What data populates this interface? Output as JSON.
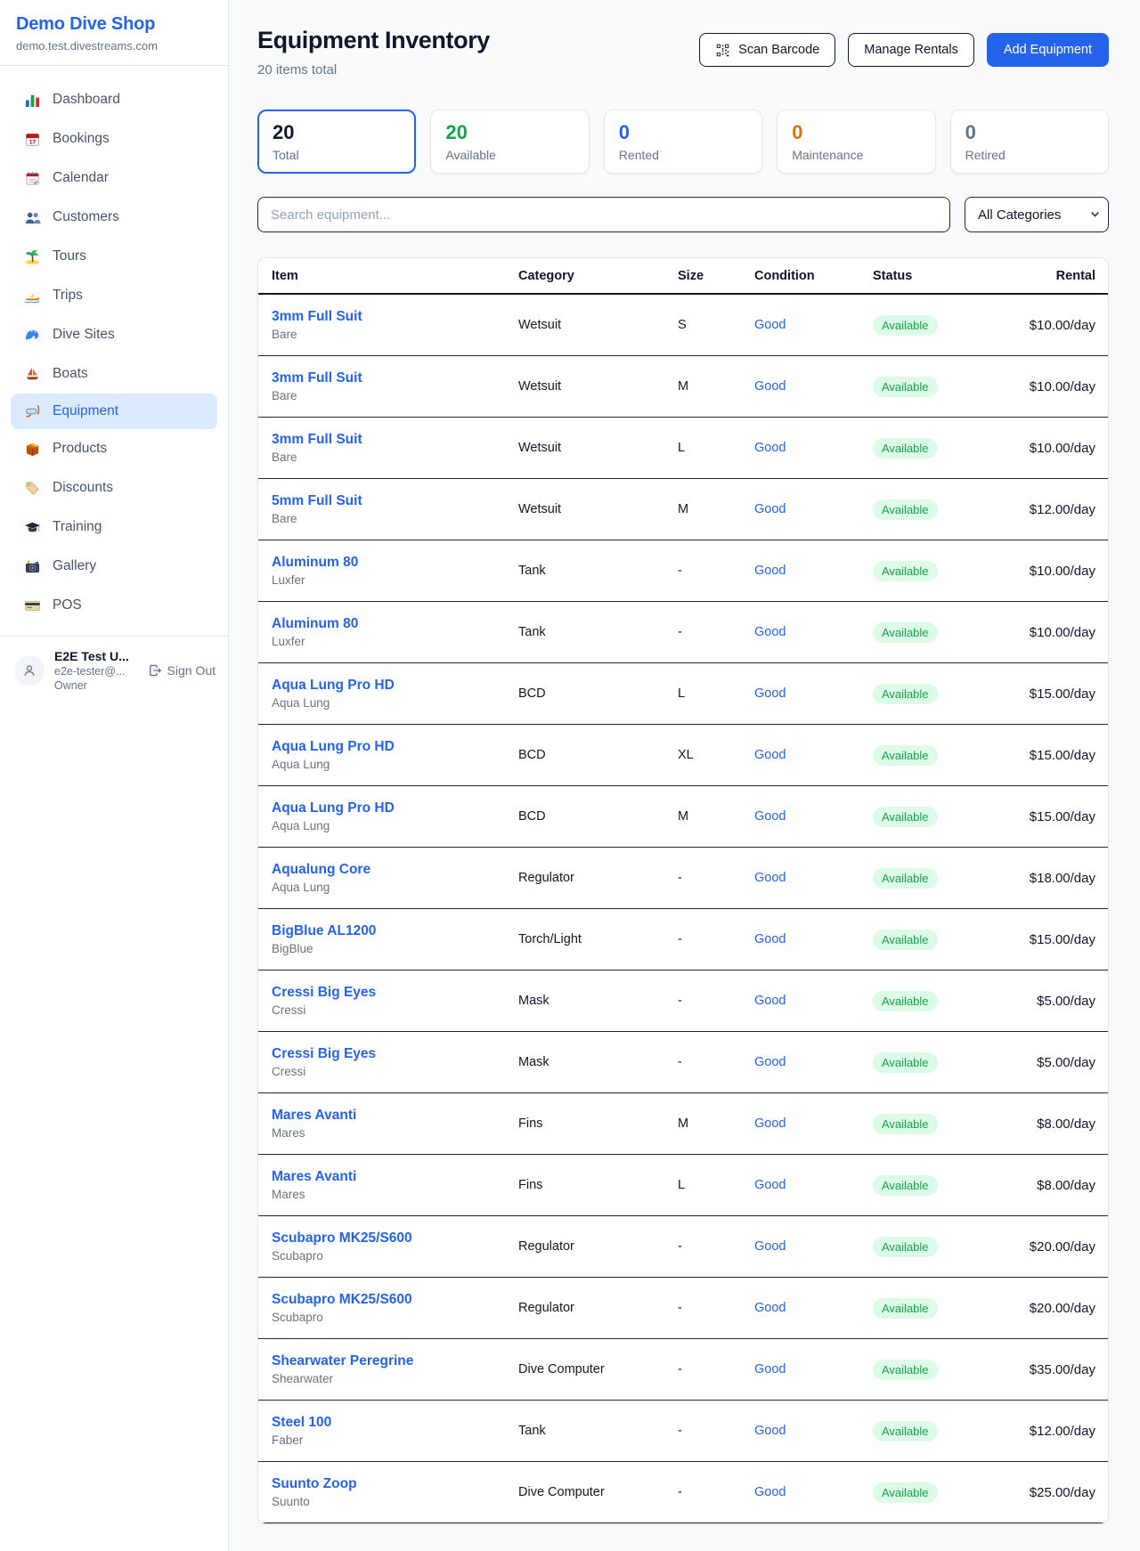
{
  "sidebar": {
    "title": "Demo Dive Shop",
    "domain": "demo.test.divestreams.com",
    "items": [
      {
        "label": "Dashboard",
        "icon": "dashboard",
        "active": false
      },
      {
        "label": "Bookings",
        "icon": "bookings",
        "active": false
      },
      {
        "label": "Calendar",
        "icon": "calendar",
        "active": false
      },
      {
        "label": "Customers",
        "icon": "customers",
        "active": false
      },
      {
        "label": "Tours",
        "icon": "tours",
        "active": false
      },
      {
        "label": "Trips",
        "icon": "trips",
        "active": false
      },
      {
        "label": "Dive Sites",
        "icon": "dive-sites",
        "active": false
      },
      {
        "label": "Boats",
        "icon": "boats",
        "active": false
      },
      {
        "label": "Equipment",
        "icon": "equipment",
        "active": true
      },
      {
        "label": "Products",
        "icon": "products",
        "active": false
      },
      {
        "label": "Discounts",
        "icon": "discounts",
        "active": false
      },
      {
        "label": "Training",
        "icon": "training",
        "active": false
      },
      {
        "label": "Gallery",
        "icon": "gallery",
        "active": false
      },
      {
        "label": "POS",
        "icon": "pos",
        "active": false
      }
    ],
    "user": {
      "name": "E2E Test U...",
      "email": "e2e-tester@...",
      "role": "Owner",
      "sign_out": "Sign Out"
    }
  },
  "header": {
    "title": "Equipment Inventory",
    "subtitle": "20 items total",
    "buttons": {
      "scan": "Scan Barcode",
      "manage": "Manage Rentals",
      "add": "Add Equipment"
    }
  },
  "stats": [
    {
      "value": "20",
      "label": "Total",
      "color": "#0f172a",
      "active": true
    },
    {
      "value": "20",
      "label": "Available",
      "color": "#16a34a",
      "active": false
    },
    {
      "value": "0",
      "label": "Rented",
      "color": "#2563eb",
      "active": false
    },
    {
      "value": "0",
      "label": "Maintenance",
      "color": "#d97706",
      "active": false
    },
    {
      "value": "0",
      "label": "Retired",
      "color": "#64748b",
      "active": false
    }
  ],
  "filters": {
    "search_placeholder": "Search equipment...",
    "category_selected": "All Categories"
  },
  "table": {
    "columns": [
      "Item",
      "Category",
      "Size",
      "Condition",
      "Status",
      "Rental"
    ],
    "rows": [
      {
        "name": "3mm Full Suit",
        "brand": "Bare",
        "category": "Wetsuit",
        "size": "S",
        "condition": "Good",
        "status": "Available",
        "rental": "$10.00/day"
      },
      {
        "name": "3mm Full Suit",
        "brand": "Bare",
        "category": "Wetsuit",
        "size": "M",
        "condition": "Good",
        "status": "Available",
        "rental": "$10.00/day"
      },
      {
        "name": "3mm Full Suit",
        "brand": "Bare",
        "category": "Wetsuit",
        "size": "L",
        "condition": "Good",
        "status": "Available",
        "rental": "$10.00/day"
      },
      {
        "name": "5mm Full Suit",
        "brand": "Bare",
        "category": "Wetsuit",
        "size": "M",
        "condition": "Good",
        "status": "Available",
        "rental": "$12.00/day"
      },
      {
        "name": "Aluminum 80",
        "brand": "Luxfer",
        "category": "Tank",
        "size": "-",
        "condition": "Good",
        "status": "Available",
        "rental": "$10.00/day"
      },
      {
        "name": "Aluminum 80",
        "brand": "Luxfer",
        "category": "Tank",
        "size": "-",
        "condition": "Good",
        "status": "Available",
        "rental": "$10.00/day"
      },
      {
        "name": "Aqua Lung Pro HD",
        "brand": "Aqua Lung",
        "category": "BCD",
        "size": "L",
        "condition": "Good",
        "status": "Available",
        "rental": "$15.00/day"
      },
      {
        "name": "Aqua Lung Pro HD",
        "brand": "Aqua Lung",
        "category": "BCD",
        "size": "XL",
        "condition": "Good",
        "status": "Available",
        "rental": "$15.00/day"
      },
      {
        "name": "Aqua Lung Pro HD",
        "brand": "Aqua Lung",
        "category": "BCD",
        "size": "M",
        "condition": "Good",
        "status": "Available",
        "rental": "$15.00/day"
      },
      {
        "name": "Aqualung Core",
        "brand": "Aqua Lung",
        "category": "Regulator",
        "size": "-",
        "condition": "Good",
        "status": "Available",
        "rental": "$18.00/day"
      },
      {
        "name": "BigBlue AL1200",
        "brand": "BigBlue",
        "category": "Torch/Light",
        "size": "-",
        "condition": "Good",
        "status": "Available",
        "rental": "$15.00/day"
      },
      {
        "name": "Cressi Big Eyes",
        "brand": "Cressi",
        "category": "Mask",
        "size": "-",
        "condition": "Good",
        "status": "Available",
        "rental": "$5.00/day"
      },
      {
        "name": "Cressi Big Eyes",
        "brand": "Cressi",
        "category": "Mask",
        "size": "-",
        "condition": "Good",
        "status": "Available",
        "rental": "$5.00/day"
      },
      {
        "name": "Mares Avanti",
        "brand": "Mares",
        "category": "Fins",
        "size": "M",
        "condition": "Good",
        "status": "Available",
        "rental": "$8.00/day"
      },
      {
        "name": "Mares Avanti",
        "brand": "Mares",
        "category": "Fins",
        "size": "L",
        "condition": "Good",
        "status": "Available",
        "rental": "$8.00/day"
      },
      {
        "name": "Scubapro MK25/S600",
        "brand": "Scubapro",
        "category": "Regulator",
        "size": "-",
        "condition": "Good",
        "status": "Available",
        "rental": "$20.00/day"
      },
      {
        "name": "Scubapro MK25/S600",
        "brand": "Scubapro",
        "category": "Regulator",
        "size": "-",
        "condition": "Good",
        "status": "Available",
        "rental": "$20.00/day"
      },
      {
        "name": "Shearwater Peregrine",
        "brand": "Shearwater",
        "category": "Dive Computer",
        "size": "-",
        "condition": "Good",
        "status": "Available",
        "rental": "$35.00/day"
      },
      {
        "name": "Steel 100",
        "brand": "Faber",
        "category": "Tank",
        "size": "-",
        "condition": "Good",
        "status": "Available",
        "rental": "$12.00/day"
      },
      {
        "name": "Suunto Zoop",
        "brand": "Suunto",
        "category": "Dive Computer",
        "size": "-",
        "condition": "Good",
        "status": "Available",
        "rental": "$25.00/day"
      }
    ]
  },
  "colors": {
    "accent": "#2563eb",
    "link": "#2563eb",
    "status_available_bg": "#dcfce7",
    "status_available_text": "#16a34a",
    "active_nav_bg": "#dbeafe"
  }
}
